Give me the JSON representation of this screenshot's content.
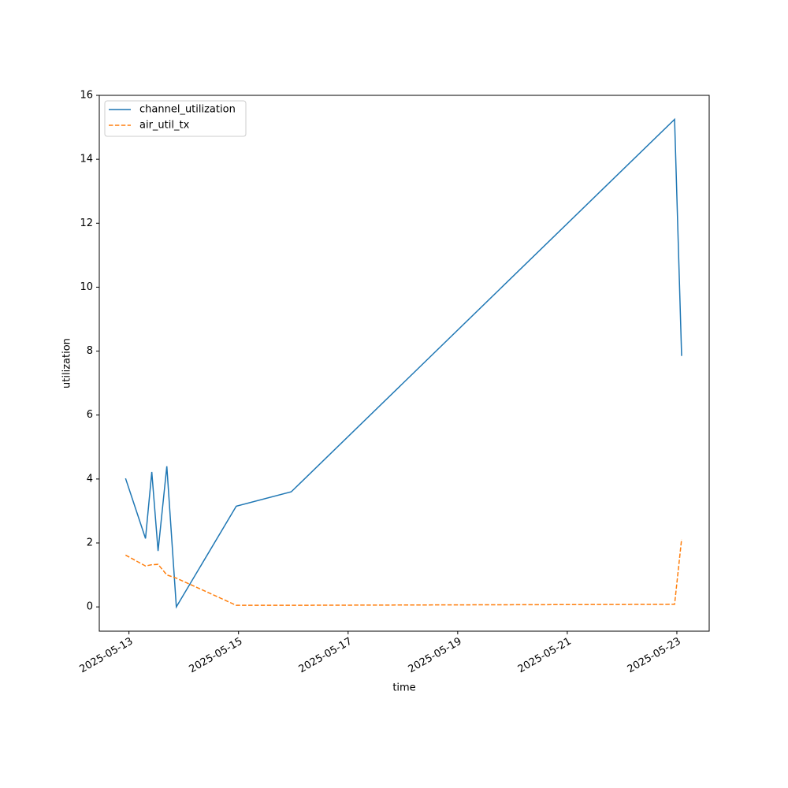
{
  "chart_data": {
    "type": "line",
    "xlabel": "time",
    "ylabel": "utilization",
    "x": [
      "2025-05-12 22:30",
      "2025-05-13 07:15",
      "2025-05-13 10:00",
      "2025-05-13 12:45",
      "2025-05-13 16:35",
      "2025-05-13 20:45",
      "2025-05-14 23:00",
      "2025-05-15 23:05",
      "2025-05-22 23:00",
      "2025-05-23 02:05"
    ],
    "series": [
      {
        "name": "channel_utilization",
        "color": "#1f77b4",
        "dash": "solid",
        "values": [
          4.02,
          2.14,
          4.22,
          1.75,
          4.4,
          0.0,
          3.15,
          3.6,
          15.25,
          7.85
        ]
      },
      {
        "name": "air_util_tx",
        "color": "#ff7f0e",
        "dash": "dashed",
        "values": [
          1.62,
          1.28,
          1.32,
          1.33,
          1.0,
          0.9,
          0.05,
          0.05,
          0.08,
          2.12
        ]
      }
    ],
    "xlim": [
      "2025-05-12 11:00",
      "2025-05-23 14:10"
    ],
    "xticks": [
      "2025-05-13",
      "2025-05-15",
      "2025-05-17",
      "2025-05-19",
      "2025-05-21",
      "2025-05-23"
    ],
    "ylim": [
      -0.76,
      16.0
    ],
    "yticks": [
      0,
      2,
      4,
      6,
      8,
      10,
      12,
      14,
      16
    ],
    "grid": false,
    "legend": "upper-left"
  }
}
